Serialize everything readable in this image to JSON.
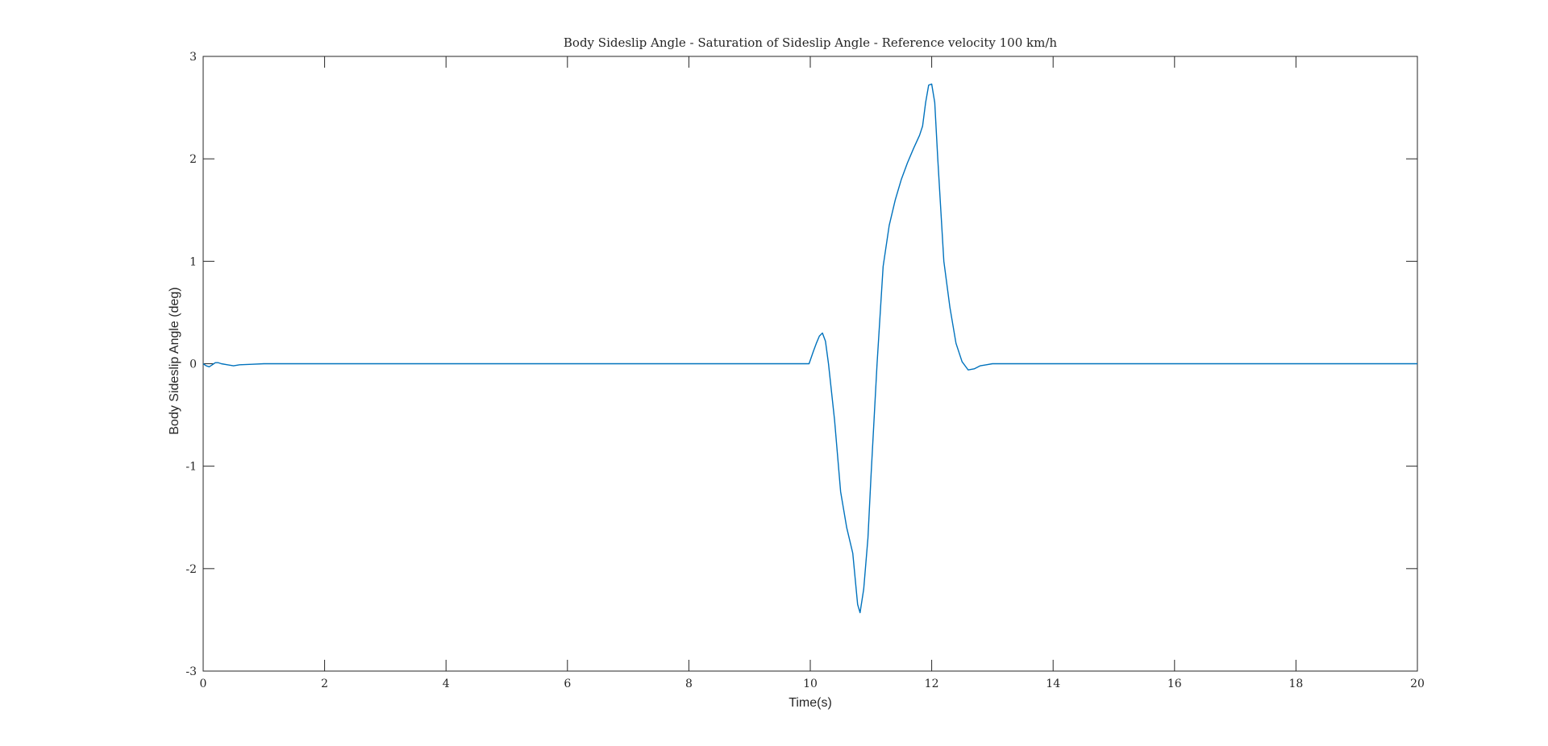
{
  "chart_data": {
    "type": "line",
    "title": "Body Sideslip Angle - Saturation of Sideslip Angle - Reference velocity 100 km/h",
    "xlabel": "Time(s)",
    "ylabel": "Body Sideslip Angle (deg)",
    "xlim": [
      0,
      20
    ],
    "ylim": [
      -3,
      3
    ],
    "xticks": [
      0,
      2,
      4,
      6,
      8,
      10,
      12,
      14,
      16,
      18,
      20
    ],
    "yticks": [
      -3,
      -2,
      -1,
      0,
      1,
      2,
      3
    ],
    "grid": false,
    "legend": "none",
    "series": [
      {
        "color": "#0072BD",
        "x": [
          0,
          0.05,
          0.1,
          0.15,
          0.2,
          0.25,
          0.3,
          0.4,
          0.5,
          0.6,
          0.8,
          1.0,
          2,
          4,
          6,
          8,
          9.5,
          9.98,
          10.05,
          10.1,
          10.15,
          10.2,
          10.25,
          10.3,
          10.4,
          10.5,
          10.6,
          10.7,
          10.78,
          10.82,
          10.88,
          10.95,
          11.0,
          11.1,
          11.2,
          11.3,
          11.4,
          11.5,
          11.6,
          11.7,
          11.8,
          11.85,
          11.9,
          11.95,
          12.0,
          12.05,
          12.1,
          12.2,
          12.3,
          12.4,
          12.5,
          12.6,
          12.7,
          12.8,
          12.9,
          13.0,
          13.2,
          13.5,
          14,
          16,
          18,
          20
        ],
        "y": [
          0,
          -0.02,
          -0.03,
          -0.01,
          0.01,
          0.01,
          0.0,
          -0.01,
          -0.02,
          -0.01,
          -0.005,
          0,
          0,
          0,
          0,
          0,
          0,
          0.0,
          0.12,
          0.2,
          0.27,
          0.3,
          0.22,
          0.0,
          -0.55,
          -1.25,
          -1.6,
          -1.85,
          -2.35,
          -2.43,
          -2.2,
          -1.7,
          -1.1,
          0.0,
          0.95,
          1.35,
          1.6,
          1.8,
          1.96,
          2.1,
          2.23,
          2.32,
          2.55,
          2.72,
          2.73,
          2.55,
          2.0,
          1.0,
          0.55,
          0.2,
          0.02,
          -0.06,
          -0.05,
          -0.02,
          -0.01,
          0.0,
          0.0,
          0.0,
          0,
          0,
          0,
          0
        ]
      }
    ]
  }
}
